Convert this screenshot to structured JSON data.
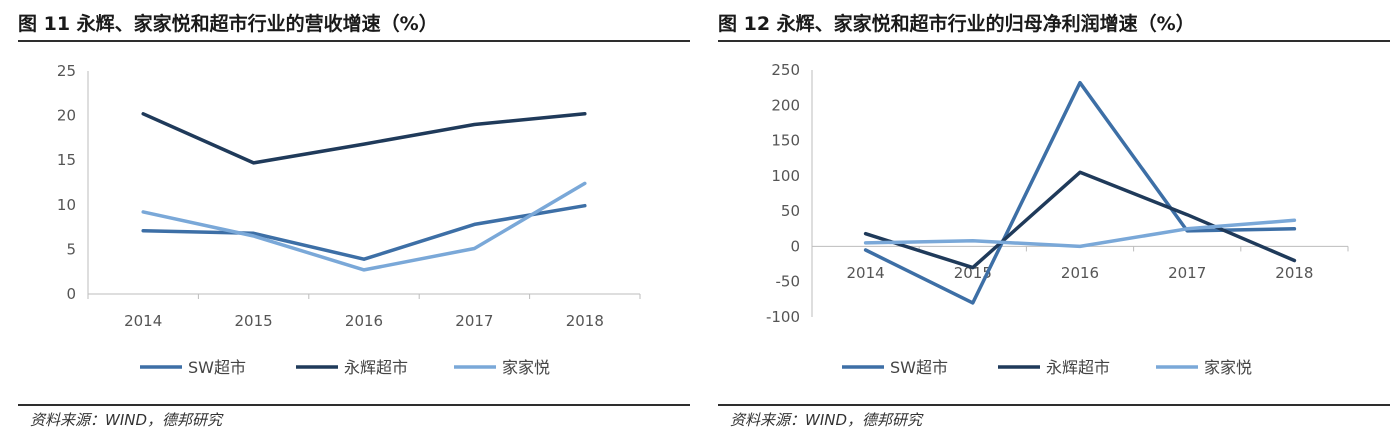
{
  "chart_data": [
    {
      "type": "line",
      "title": "图 11 永辉、家家悦和超市行业的营收增速（%）",
      "source": "资料来源：WIND，德邦研究",
      "categories": [
        "2014",
        "2015",
        "2016",
        "2017",
        "2018"
      ],
      "ylim": [
        0,
        25
      ],
      "yticks": [
        "0",
        "5",
        "10",
        "15",
        "20",
        "25"
      ],
      "legend_position": "bottom",
      "grid": false,
      "series": [
        {
          "name": "SW超市",
          "color": "#3d6fa6",
          "values": [
            7.1,
            6.8,
            3.9,
            7.8,
            9.9
          ]
        },
        {
          "name": "永辉超市",
          "color": "#1f3a5a",
          "values": [
            20.2,
            14.7,
            16.8,
            19.0,
            20.2
          ]
        },
        {
          "name": "家家悦",
          "color": "#7aa8d8",
          "values": [
            9.2,
            6.5,
            2.7,
            5.1,
            12.4
          ]
        }
      ]
    },
    {
      "type": "line",
      "title": "图 12 永辉、家家悦和超市行业的归母净利润增速（%）",
      "source": "资料来源：WIND，德邦研究",
      "categories": [
        "2014",
        "2015",
        "2016",
        "2017",
        "2018"
      ],
      "ylim": [
        -100,
        250
      ],
      "yticks": [
        "-100",
        "-50",
        "0",
        "50",
        "100",
        "150",
        "200",
        "250"
      ],
      "legend_position": "bottom",
      "grid": false,
      "series": [
        {
          "name": "SW超市",
          "color": "#3d6fa6",
          "values": [
            -5,
            -80,
            232,
            22,
            25
          ]
        },
        {
          "name": "永辉超市",
          "color": "#1f3a5a",
          "values": [
            18,
            -30,
            105,
            45,
            -20
          ]
        },
        {
          "name": "家家悦",
          "color": "#7aa8d8",
          "values": [
            5,
            8,
            0,
            25,
            37
          ]
        }
      ]
    }
  ]
}
